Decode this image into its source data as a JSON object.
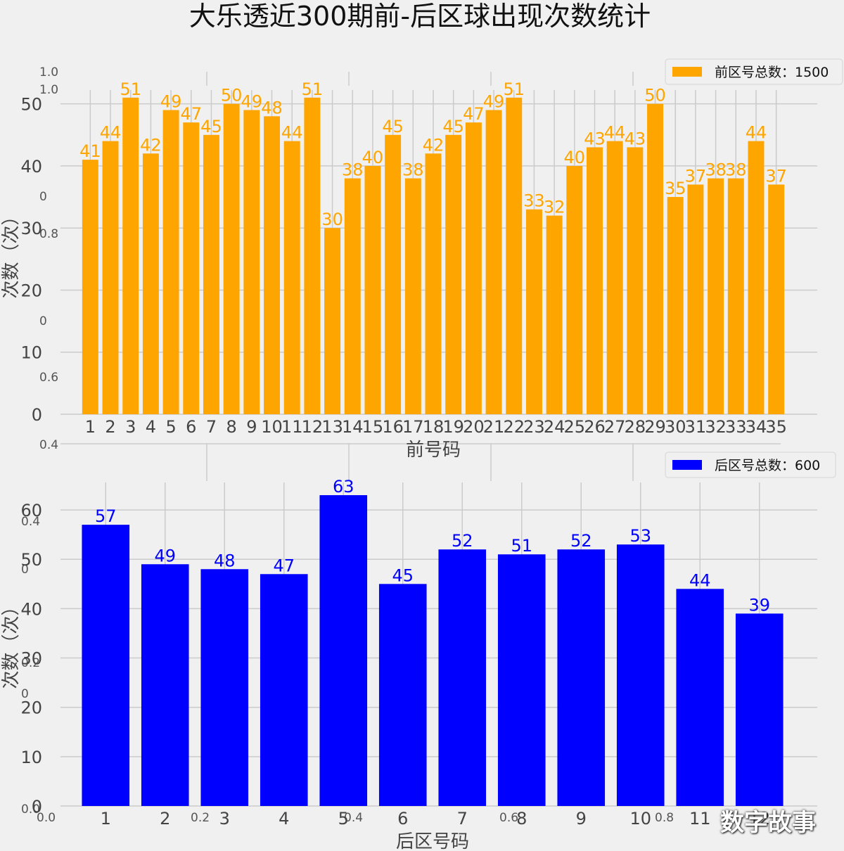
{
  "title": "大乐透近300期前-后区球出现次数统计",
  "watermark": "数字故事",
  "ghost_ticks": {
    "top_y": [
      "1.0",
      "1.0",
      "0",
      "0.8",
      "0",
      "0.6"
    ],
    "middle": "0.4",
    "bottom_y": [
      "0.4",
      "0",
      "0.2",
      "0",
      "0.0"
    ],
    "bottom_x": [
      "0.0",
      "0.2",
      "0.4",
      "0.6",
      "0.8"
    ]
  },
  "chart_data": [
    {
      "type": "bar",
      "title": "",
      "xlabel": "前号码",
      "ylabel": "次数（次）",
      "ylim": [
        0,
        52
      ],
      "yticks": [
        0,
        10,
        20,
        30,
        40,
        50
      ],
      "color": "#FFA500",
      "legend": "前区号总数：1500",
      "legend_position": "top-right",
      "grid": true,
      "categories": [
        "1",
        "2",
        "3",
        "4",
        "5",
        "6",
        "7",
        "8",
        "9",
        "10",
        "11",
        "12",
        "13",
        "14",
        "15",
        "16",
        "17",
        "18",
        "19",
        "20",
        "21",
        "22",
        "23",
        "24",
        "25",
        "26",
        "27",
        "28",
        "29",
        "30",
        "31",
        "32",
        "33",
        "34",
        "35"
      ],
      "values": [
        41,
        44,
        51,
        42,
        49,
        47,
        45,
        50,
        49,
        48,
        44,
        51,
        30,
        38,
        40,
        45,
        38,
        42,
        45,
        47,
        49,
        51,
        33,
        32,
        40,
        43,
        44,
        43,
        50,
        35,
        37,
        38,
        38,
        44,
        37
      ]
    },
    {
      "type": "bar",
      "title": "",
      "xlabel": "后区号码",
      "ylabel": "次数（次）",
      "ylim": [
        0,
        66
      ],
      "yticks": [
        0,
        10,
        20,
        30,
        40,
        50,
        60
      ],
      "color": "#0000FF",
      "legend": "后区号总数：600",
      "legend_position": "top-right",
      "grid": true,
      "categories": [
        "1",
        "2",
        "3",
        "4",
        "5",
        "6",
        "7",
        "8",
        "9",
        "10",
        "11",
        "12"
      ],
      "values": [
        57,
        49,
        48,
        47,
        63,
        45,
        52,
        51,
        52,
        53,
        44,
        39
      ]
    }
  ]
}
